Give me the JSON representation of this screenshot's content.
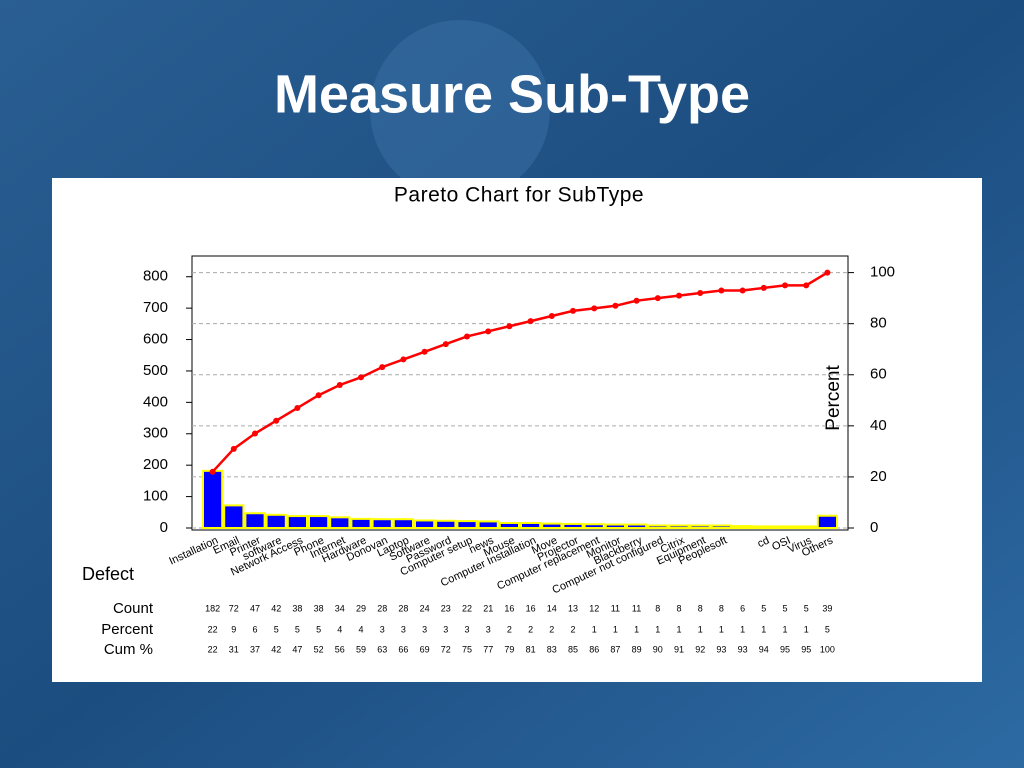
{
  "slide_title": "Measure Sub-Type",
  "chart_data": {
    "type": "pareto",
    "title": "Pareto Chart for SubType",
    "x_label": "Defect",
    "y2_label": "Percent",
    "categories": [
      "Installation",
      "Email",
      "Printer",
      "software",
      "Network Access",
      "Phone",
      "Internet",
      "Hardware",
      "Donovan",
      "Laptop",
      "Software",
      "Password",
      "Computer setup",
      "news",
      "Mouse",
      "Computer Installation",
      "Move",
      "Projector",
      "Computer replacement",
      "Monitor",
      "Blackberry",
      "Computer not configured",
      "Citrix",
      "Equipment",
      "Peoplesoft",
      null,
      "cd",
      "OSI",
      "Virus",
      "Others"
    ],
    "series": [
      {
        "name": "Count",
        "color": "#0000ff",
        "edge_color": "#ffff00",
        "values": [
          182,
          72,
          47,
          42,
          38,
          38,
          34,
          29,
          28,
          28,
          24,
          23,
          22,
          21,
          16,
          16,
          14,
          13,
          12,
          11,
          11,
          8,
          8,
          8,
          8,
          6,
          5,
          5,
          5,
          39
        ]
      },
      {
        "name": "Percent",
        "values": [
          22,
          9,
          6,
          5,
          5,
          5,
          4,
          4,
          3,
          3,
          3,
          3,
          3,
          3,
          2,
          2,
          2,
          2,
          1,
          1,
          1,
          1,
          1,
          1,
          1,
          1,
          1,
          1,
          1,
          5
        ]
      },
      {
        "name": "Cum %",
        "color": "#ff0000",
        "axis": "y2",
        "values": [
          22,
          31,
          37,
          42,
          47,
          52,
          56,
          59,
          63,
          66,
          69,
          72,
          75,
          77,
          79,
          81,
          83,
          85,
          86,
          87,
          89,
          90,
          91,
          92,
          93,
          93,
          94,
          95,
          95,
          100
        ]
      }
    ],
    "ylim": [
      0,
      866
    ],
    "yticks": [
      0,
      100,
      200,
      300,
      400,
      500,
      600,
      700,
      800
    ],
    "y2lim": [
      0,
      106.5
    ],
    "y2ticks": [
      0,
      20,
      40,
      60,
      80,
      100
    ],
    "grid": "y2"
  }
}
